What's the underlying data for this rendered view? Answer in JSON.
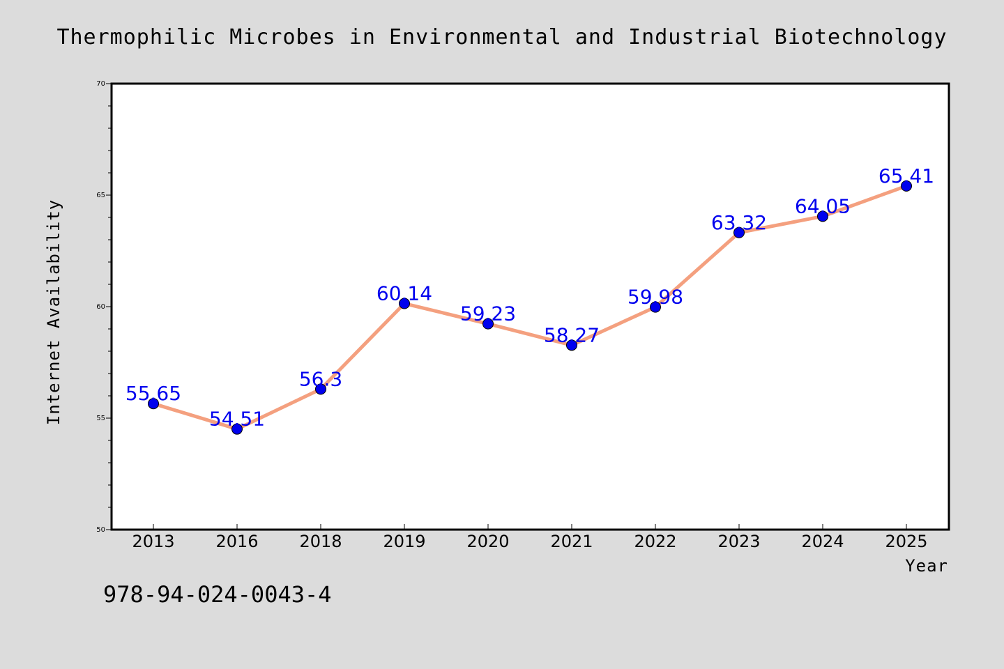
{
  "chart_data": {
    "type": "line",
    "title": "Thermophilic Microbes in Environmental and Industrial Biotechnology",
    "xlabel": "Year",
    "ylabel": "Internet Availability",
    "categories": [
      "2013",
      "2016",
      "2018",
      "2019",
      "2020",
      "2021",
      "2022",
      "2023",
      "2024",
      "2025"
    ],
    "series": [
      {
        "values": [
          55.65,
          54.51,
          56.3,
          60.14,
          59.23,
          58.27,
          59.98,
          63.32,
          64.05,
          65.41
        ],
        "data_labels": [
          "55.65",
          "54.51",
          "56.3",
          "60.14",
          "59.23",
          "58.27",
          "59.98",
          "63.32",
          "64.05",
          "65.41"
        ]
      }
    ],
    "ylim": [
      50,
      70
    ],
    "yticks": [
      "50",
      "55",
      "60",
      "65",
      "70"
    ],
    "grid": false,
    "legend": "none",
    "colors": {
      "line": "#f4a07f",
      "marker": "#0000ee",
      "label": "#0000ee"
    }
  },
  "footer": {
    "isbn": "978-94-024-0043-4"
  }
}
